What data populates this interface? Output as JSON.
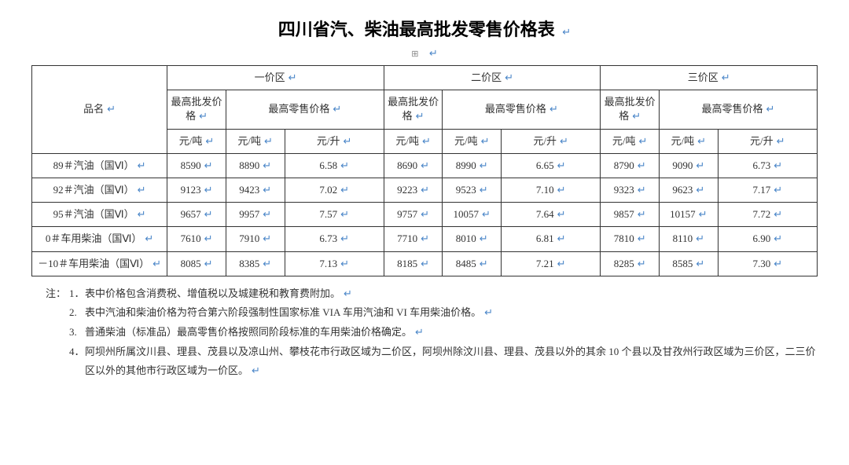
{
  "title": "四川省汽、柴油最高批发零售价格表",
  "crlf_glyph": "↵",
  "anchor_glyph": "⊞",
  "table": {
    "header": {
      "name": "品名",
      "zones": [
        "一价区",
        "二价区",
        "三价区"
      ],
      "wholesale": "最高批发价格",
      "retail": "最高零售价格",
      "unit_ton": "元/吨",
      "unit_liter": "元/升"
    },
    "rows": [
      {
        "name": "89＃汽油（国Ⅵ）",
        "z1": {
          "wp": "8590",
          "rt": "8890",
          "rl": "6.58"
        },
        "z2": {
          "wp": "8690",
          "rt": "8990",
          "rl": "6.65"
        },
        "z3": {
          "wp": "8790",
          "rt": "9090",
          "rl": "6.73"
        }
      },
      {
        "name": "92＃汽油（国Ⅵ）",
        "z1": {
          "wp": "9123",
          "rt": "9423",
          "rl": "7.02"
        },
        "z2": {
          "wp": "9223",
          "rt": "9523",
          "rl": "7.10"
        },
        "z3": {
          "wp": "9323",
          "rt": "9623",
          "rl": "7.17"
        }
      },
      {
        "name": "95＃汽油（国Ⅵ）",
        "z1": {
          "wp": "9657",
          "rt": "9957",
          "rl": "7.57"
        },
        "z2": {
          "wp": "9757",
          "rt": "10057",
          "rl": "7.64"
        },
        "z3": {
          "wp": "9857",
          "rt": "10157",
          "rl": "7.72"
        }
      },
      {
        "name": "0＃车用柴油（国Ⅵ）",
        "z1": {
          "wp": "7610",
          "rt": "7910",
          "rl": "6.73"
        },
        "z2": {
          "wp": "7710",
          "rt": "8010",
          "rl": "6.81"
        },
        "z3": {
          "wp": "7810",
          "rt": "8110",
          "rl": "6.90"
        }
      },
      {
        "name": "－10＃车用柴油（国Ⅵ）",
        "z1": {
          "wp": "8085",
          "rt": "8385",
          "rl": "7.13"
        },
        "z2": {
          "wp": "8185",
          "rt": "8485",
          "rl": "7.21"
        },
        "z3": {
          "wp": "8285",
          "rt": "8585",
          "rl": "7.30"
        }
      }
    ]
  },
  "notes": {
    "lead": "注：",
    "items": [
      {
        "num": "1．",
        "text": "表中价格包含消费税、增值税以及城建税和教育费附加。"
      },
      {
        "num": "2.",
        "text": "表中汽油和柴油价格为符合第六阶段强制性国家标准 VIA 车用汽油和 VI 车用柴油价格。"
      },
      {
        "num": "3.",
        "text": "普通柴油（标准品）最高零售价格按照同阶段标准的车用柴油价格确定。"
      },
      {
        "num": "4．",
        "text": "阿坝州所属汶川县、理县、茂县以及凉山州、攀枝花市行政区域为二价区，阿坝州除汶川县、理县、茂县以外的其余 10 个县以及甘孜州行政区域为三价区，二三价区以外的其他市行政区域为一价区。"
      }
    ]
  },
  "colors": {
    "text": "#333333",
    "border": "#333333",
    "crlf": "#4a86c8",
    "background": "#ffffff"
  }
}
